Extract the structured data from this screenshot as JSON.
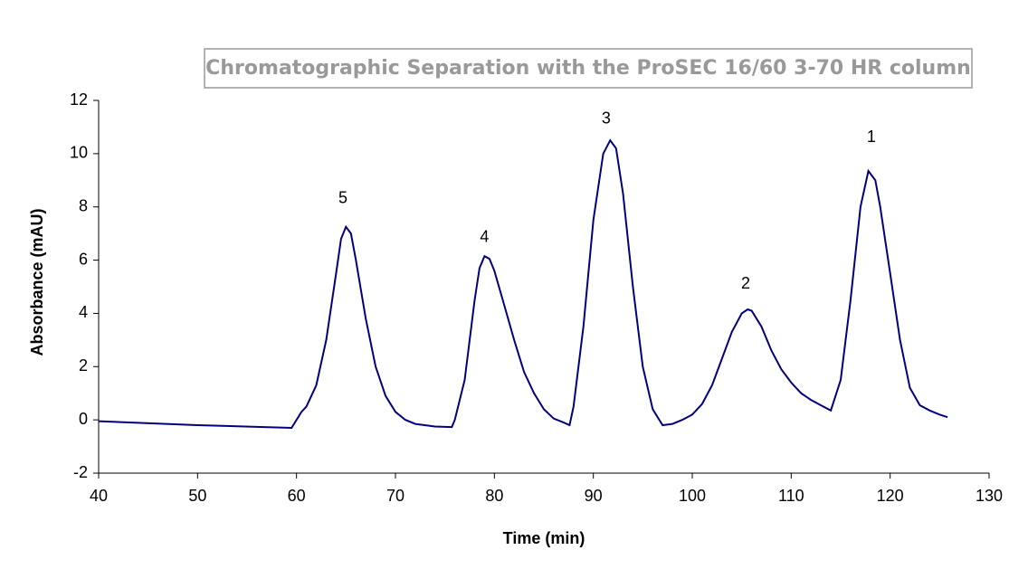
{
  "chart_data": {
    "type": "line",
    "title": "Chromatographic Separation with the ProSEC  16/60 3-70 HR column",
    "xlabel": "Time (min)",
    "ylabel": "Absorbance (mAU)",
    "xlim": [
      40,
      130
    ],
    "xticks": [
      40,
      50,
      60,
      70,
      80,
      90,
      100,
      110,
      120,
      130
    ],
    "ylim": [
      -2,
      12
    ],
    "yticks": [
      -2,
      0,
      2,
      4,
      6,
      8,
      10,
      12
    ],
    "grid": false,
    "series": [
      {
        "color": "#000080",
        "x": [
          40,
          50,
          59.5,
          60,
          60.5,
          61,
          62,
          63,
          64,
          64.5,
          65,
          65.5,
          66,
          67,
          68,
          69,
          70,
          71,
          72,
          74,
          75.7,
          76,
          77,
          78,
          78.5,
          79,
          79.5,
          80,
          81,
          82,
          83,
          84,
          85,
          86,
          87,
          87.6,
          88,
          89,
          90,
          91,
          91.7,
          92.3,
          93,
          94,
          95,
          96,
          97,
          98,
          99,
          100,
          101,
          102,
          103,
          104,
          105,
          105.6,
          106,
          107,
          108,
          109,
          110,
          111,
          112,
          113,
          114,
          115,
          116,
          117,
          117.8,
          118.5,
          119,
          120,
          121,
          122,
          123,
          124,
          125,
          125.8
        ],
        "values": [
          -0.05,
          -0.2,
          -0.3,
          0.0,
          0.3,
          0.5,
          1.3,
          3.0,
          5.5,
          6.8,
          7.25,
          7.0,
          6.0,
          3.8,
          2.0,
          0.9,
          0.3,
          0.0,
          -0.15,
          -0.25,
          -0.27,
          0.0,
          1.5,
          4.5,
          5.7,
          6.15,
          6.05,
          5.6,
          4.3,
          3.0,
          1.8,
          1.0,
          0.4,
          0.05,
          -0.1,
          -0.2,
          0.5,
          3.5,
          7.5,
          10.0,
          10.5,
          10.2,
          8.5,
          5.0,
          2.0,
          0.4,
          -0.2,
          -0.15,
          0.0,
          0.2,
          0.6,
          1.3,
          2.3,
          3.3,
          4.0,
          4.15,
          4.1,
          3.5,
          2.6,
          1.9,
          1.4,
          1.0,
          0.75,
          0.55,
          0.35,
          1.5,
          4.5,
          8.0,
          9.35,
          9.0,
          8.0,
          5.5,
          3.0,
          1.2,
          0.55,
          0.35,
          0.2,
          0.1
        ]
      }
    ],
    "annotations": [
      {
        "text": "5",
        "x": 64.7,
        "y": 8.3
      },
      {
        "text": "4",
        "x": 79,
        "y": 6.85
      },
      {
        "text": "3",
        "x": 91.3,
        "y": 11.3
      },
      {
        "text": "2",
        "x": 105.4,
        "y": 5.1
      },
      {
        "text": "1",
        "x": 118.1,
        "y": 10.6
      }
    ]
  }
}
